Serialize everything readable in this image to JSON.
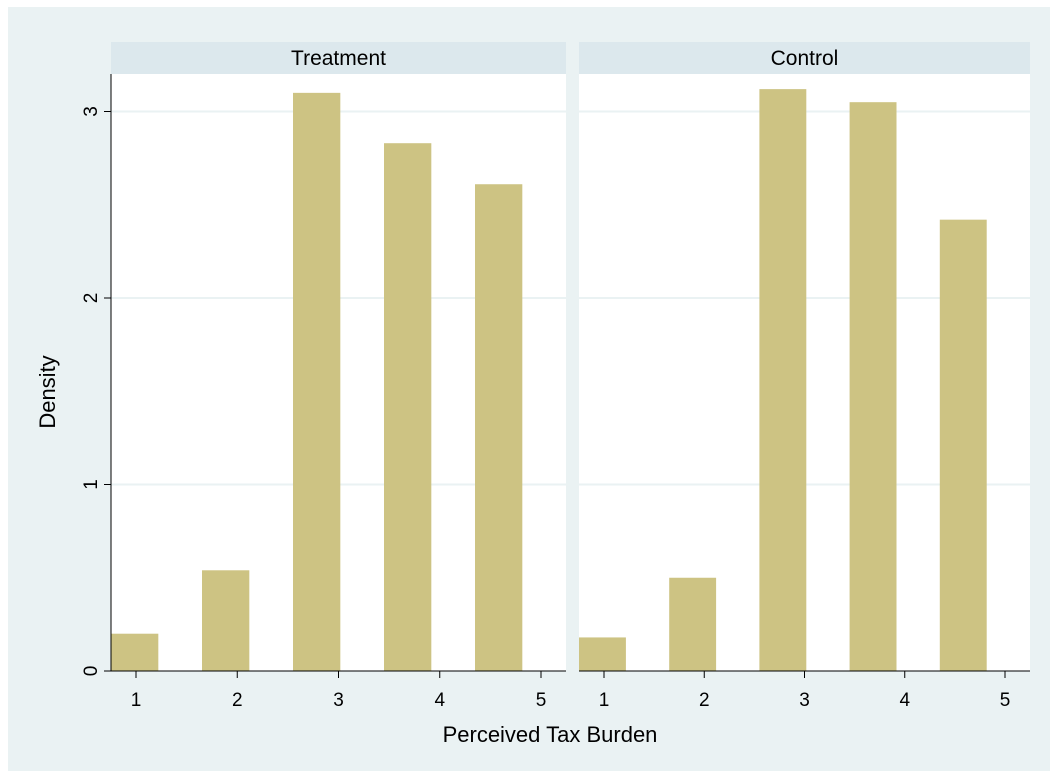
{
  "chart_data": {
    "type": "bar",
    "categories": [
      "1",
      "2",
      "3",
      "4",
      "5"
    ],
    "ylabel": "Density",
    "xlabel": "Perceived Tax Burden",
    "ylim": [
      0,
      3.2
    ],
    "yticks": [
      "0",
      "1",
      "2",
      "3"
    ],
    "grid": true,
    "panels": [
      {
        "title": "Treatment",
        "values": [
          0.2,
          0.54,
          3.1,
          2.83,
          2.61
        ]
      },
      {
        "title": "Control",
        "values": [
          0.18,
          0.5,
          3.12,
          3.05,
          2.42
        ]
      }
    ]
  },
  "colors": {
    "bar": "#cdc383",
    "plot_background": "#eaf2f3",
    "panel_background": "#ffffff",
    "strip_background": "#dce8ed",
    "gridline": "#eaf2f3"
  }
}
